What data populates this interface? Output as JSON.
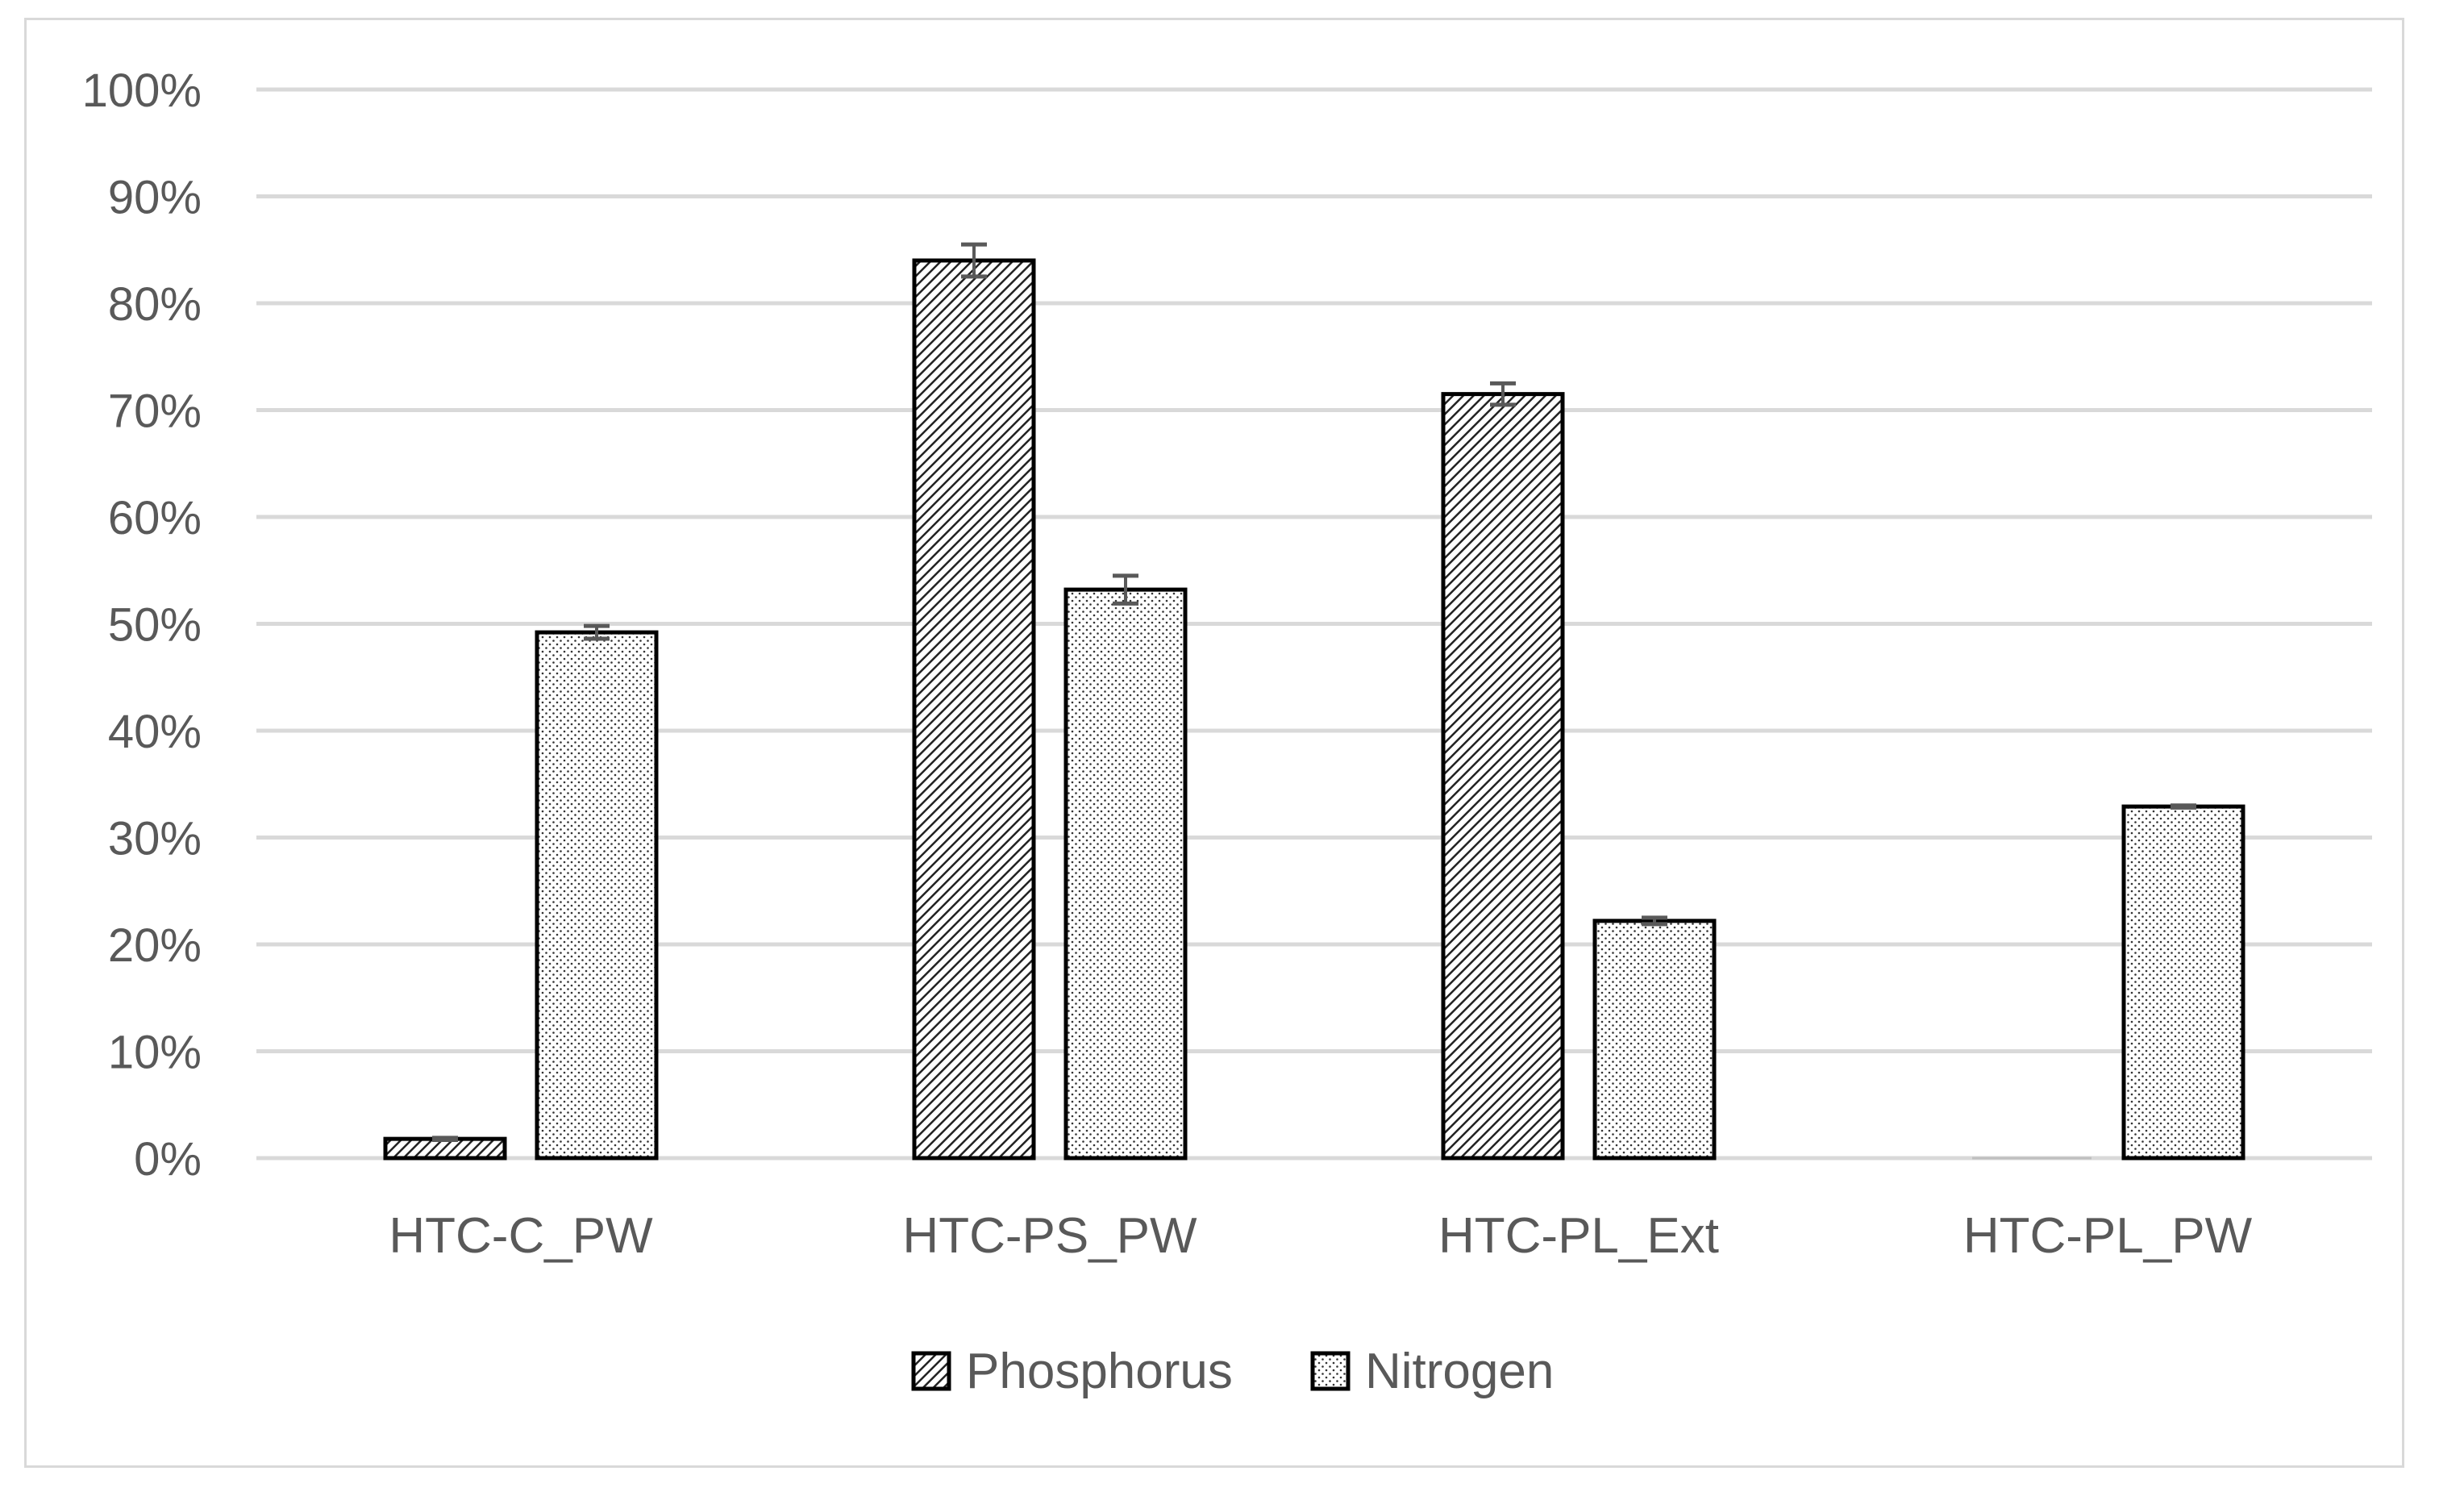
{
  "chart_data": {
    "type": "bar",
    "title": "",
    "xlabel": "",
    "ylabel": "",
    "ylim": [
      0,
      100
    ],
    "y_ticks": [
      "0%",
      "10%",
      "20%",
      "30%",
      "40%",
      "50%",
      "60%",
      "70%",
      "80%",
      "90%",
      "100%"
    ],
    "grid": true,
    "legend_position": "bottom-center",
    "categories": [
      "HTC-C_PW",
      "HTC-PS_PW",
      "HTC-PL_Ext",
      "HTC-PL_PW"
    ],
    "series": [
      {
        "name": "Phosphorus",
        "pattern": "diagonal-hatch",
        "values": [
          1.8,
          84.0,
          71.5,
          0.0
        ],
        "errors": [
          0.1,
          1.5,
          1.0,
          0.0
        ]
      },
      {
        "name": "Nitrogen",
        "pattern": "dotted",
        "values": [
          49.2,
          53.2,
          22.2,
          32.9
        ],
        "errors": [
          0.6,
          1.3,
          0.3,
          0.1
        ]
      }
    ],
    "colors": {
      "grid": "#d9d9d9",
      "text": "#595959",
      "bar_border": "#000000",
      "error_bar": "#595959"
    }
  }
}
